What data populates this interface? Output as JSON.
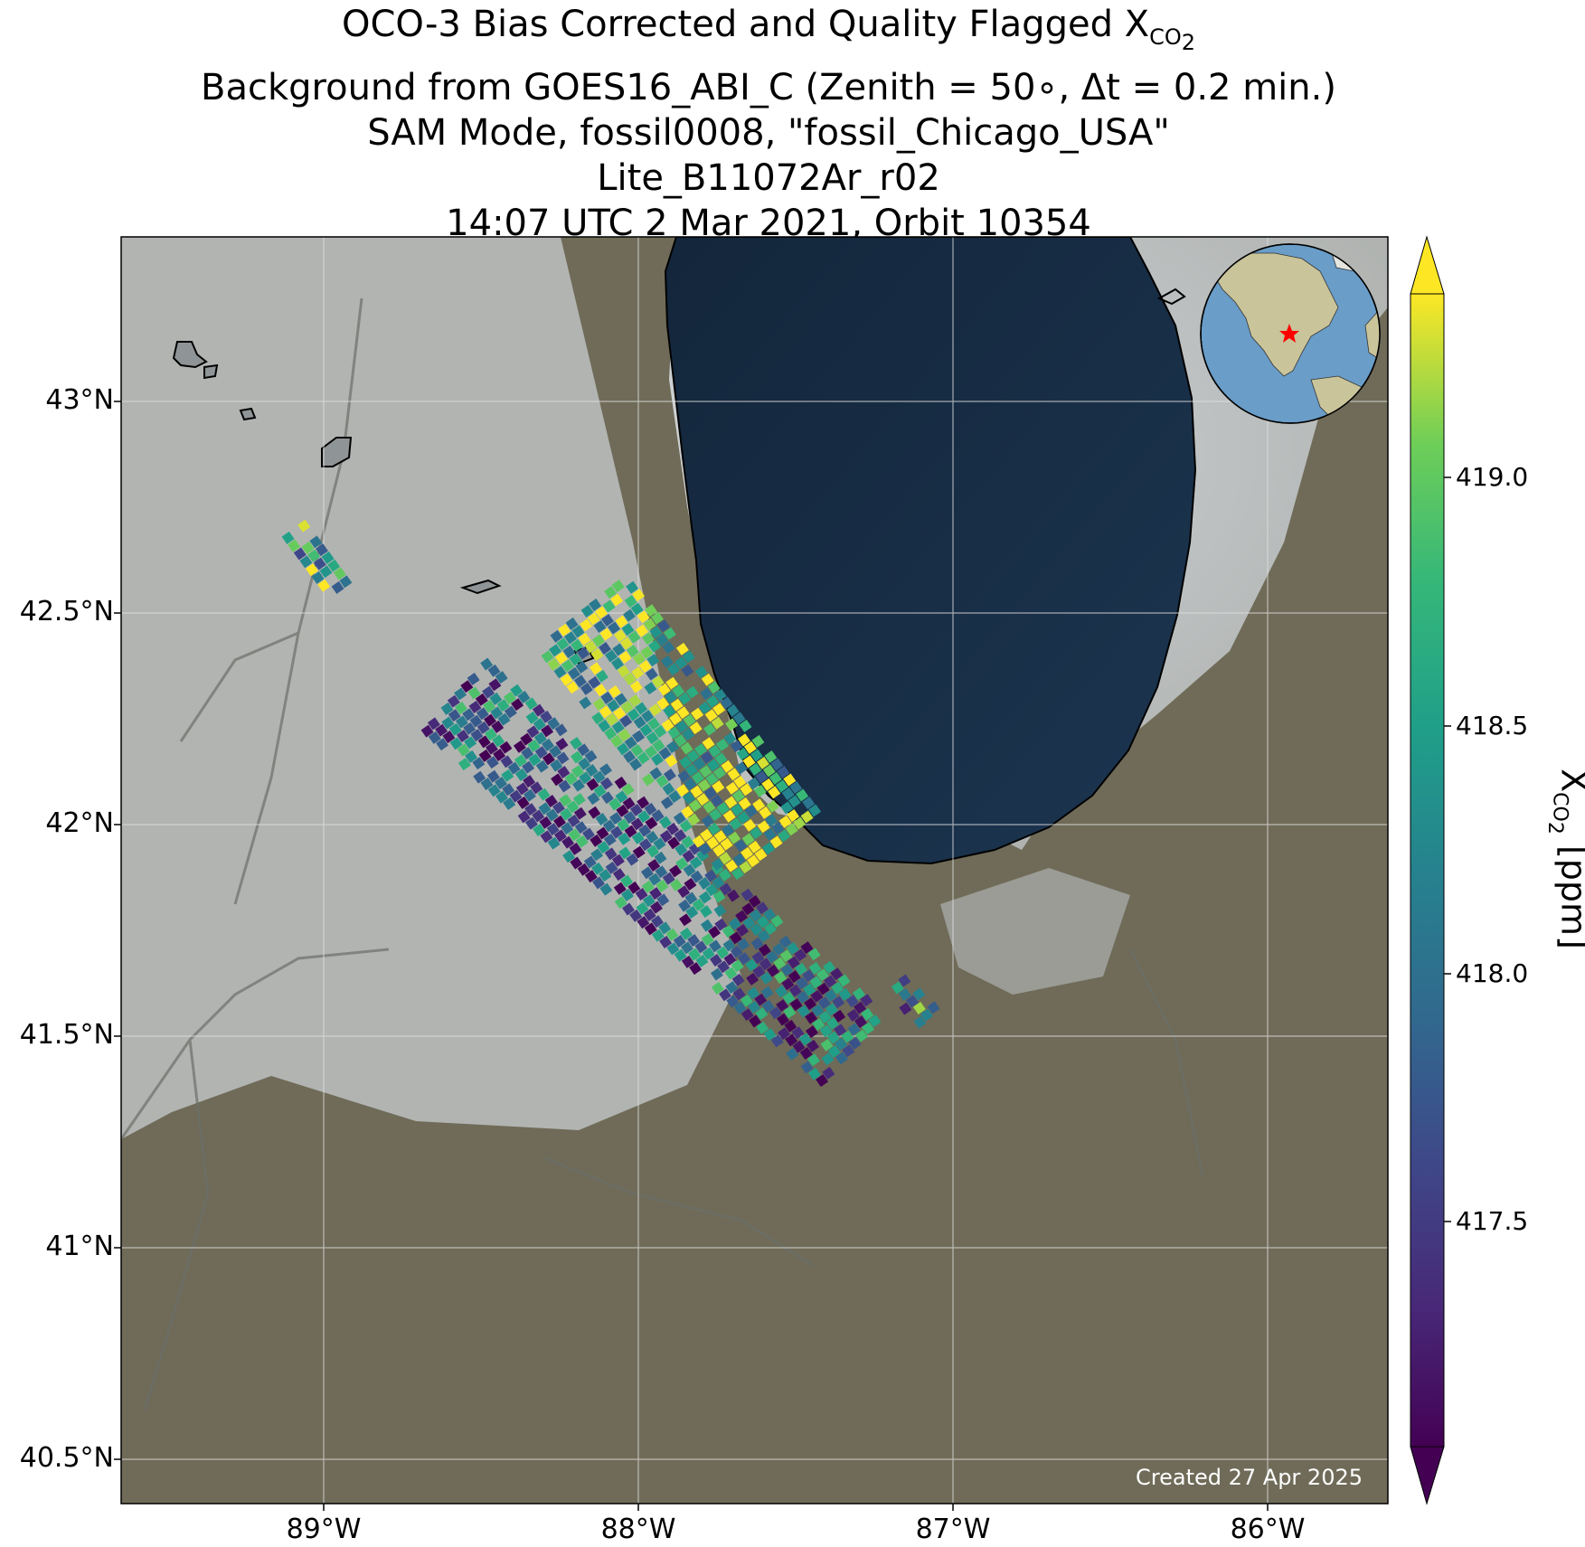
{
  "title": {
    "line1_prefix": "OCO-3 Bias Corrected and Quality Flagged X",
    "line1_sub": "CO",
    "line1_subsub": "2",
    "line2": "Background from GOES16_ABI_C (Zenith = 50∘, Δt =  0.2 min.)",
    "line3": "SAM Mode, fossil0008, \"fossil_Chicago_USA\"",
    "line4": "Lite_B11072Ar_r02",
    "line5": "14:07 UTC 2 Mar 2021, Orbit 10354"
  },
  "map": {
    "lat_ticks": [
      "43°N",
      "42.5°N",
      "42°N",
      "41.5°N",
      "41°N",
      "40.5°N"
    ],
    "lon_ticks": [
      "89°W",
      "88°W",
      "87°W",
      "86°W"
    ],
    "created_text": "Created 27 Apr 2025",
    "lat_range": [
      40.4,
      43.4
    ],
    "lon_range": [
      -89.65,
      -85.65
    ],
    "target": {
      "name": "Chicago",
      "lat": 41.88,
      "lon": -87.63
    },
    "inset_globe": {
      "marker": "red-star",
      "center_lon": -95,
      "center_lat": 35
    },
    "colors": {
      "lake": "#0f2236",
      "snow": "#c5c9cc",
      "land": "#6f6b58",
      "coastline": "#000000",
      "gridline": "#e0e0e0"
    }
  },
  "colorbar": {
    "label_prefix": "X",
    "label_sub": "CO",
    "label_subsub": "2",
    "label_suffix": " [ppm]",
    "ticks": [
      "419.0",
      "418.5",
      "418.0",
      "417.5"
    ],
    "vmin": 417.0,
    "vmax": 419.4,
    "colormap": "viridis",
    "extend": "both"
  },
  "chart_data": {
    "type": "heatmap",
    "variable": "XCO2",
    "units": "ppm",
    "value_range": [
      417.0,
      419.4
    ],
    "swaths": [
      {
        "start_lat": 42.3,
        "start_lon": -88.6,
        "end_lat": 41.47,
        "end_lon": -87.35,
        "mean_xco2": 417.9
      },
      {
        "start_lat": 42.5,
        "start_lon": -88.2,
        "end_lat": 41.95,
        "end_lon": -87.6,
        "mean_xco2": 418.8
      },
      {
        "start_lat": 42.7,
        "start_lon": -89.1,
        "end_lat": 42.55,
        "end_lon": -88.95,
        "mean_xco2": 418.6
      },
      {
        "start_lat": 41.62,
        "start_lon": -87.2,
        "end_lat": 41.55,
        "end_lon": -87.1,
        "mean_xco2": 418.2
      }
    ]
  }
}
